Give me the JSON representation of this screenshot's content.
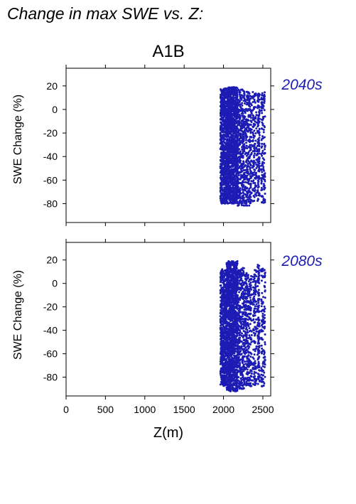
{
  "figure": {
    "title": "Change in max SWE vs. Z:",
    "scenario": "A1B"
  },
  "chart_data": [
    {
      "type": "scatter",
      "period_label": "2040s",
      "xlabel": "Z(m)",
      "ylabel": "SWE Change (%)",
      "xlim": [
        0,
        2600
      ],
      "ylim": [
        -96,
        35
      ],
      "x_ticks": [
        0,
        500,
        1000,
        1500,
        2000,
        2500
      ],
      "y_ticks": [
        20,
        0,
        -20,
        -40,
        -60,
        -80
      ],
      "grid": false,
      "point_color": "#1c1cb4",
      "point_clusters": [
        {
          "x_range": [
            1960,
            2040
          ],
          "y_range": [
            -80,
            18
          ],
          "density": "high"
        },
        {
          "x_range": [
            2040,
            2180
          ],
          "y_range": [
            -80,
            19
          ],
          "density": "very high"
        },
        {
          "x_range": [
            2180,
            2260
          ],
          "y_range": [
            -82,
            17
          ],
          "density": "medium"
        },
        {
          "x_range": [
            2260,
            2360
          ],
          "y_range": [
            -82,
            15
          ],
          "density": "medium"
        },
        {
          "x_range": [
            2370,
            2420
          ],
          "y_range": [
            -78,
            15
          ],
          "density": "low"
        },
        {
          "x_range": [
            2430,
            2460
          ],
          "y_range": [
            -78,
            14
          ],
          "density": "low"
        },
        {
          "x_range": [
            2480,
            2530
          ],
          "y_range": [
            -80,
            15
          ],
          "density": "low"
        }
      ]
    },
    {
      "type": "scatter",
      "period_label": "2080s",
      "xlabel": "Z(m)",
      "ylabel": "SWE Change (%)",
      "xlim": [
        0,
        2600
      ],
      "ylim": [
        -96,
        35
      ],
      "x_ticks": [
        0,
        500,
        1000,
        1500,
        2000,
        2500
      ],
      "x_tick_labels": [
        "0",
        "500",
        "1000",
        "1500",
        "2000",
        "2500"
      ],
      "y_ticks": [
        20,
        0,
        -20,
        -40,
        -60,
        -80
      ],
      "grid": false,
      "point_color": "#1c1cb4",
      "point_clusters": [
        {
          "x_range": [
            1960,
            2040
          ],
          "y_range": [
            -88,
            12
          ],
          "density": "high"
        },
        {
          "x_range": [
            2040,
            2180
          ],
          "y_range": [
            -92,
            19
          ],
          "density": "very high"
        },
        {
          "x_range": [
            2180,
            2260
          ],
          "y_range": [
            -90,
            14
          ],
          "density": "medium"
        },
        {
          "x_range": [
            2260,
            2360
          ],
          "y_range": [
            -88,
            10
          ],
          "density": "medium"
        },
        {
          "x_range": [
            2370,
            2420
          ],
          "y_range": [
            -88,
            12
          ],
          "density": "low"
        },
        {
          "x_range": [
            2430,
            2460
          ],
          "y_range": [
            -86,
            16
          ],
          "density": "low"
        },
        {
          "x_range": [
            2480,
            2530
          ],
          "y_range": [
            -88,
            13
          ],
          "density": "low"
        }
      ]
    }
  ]
}
